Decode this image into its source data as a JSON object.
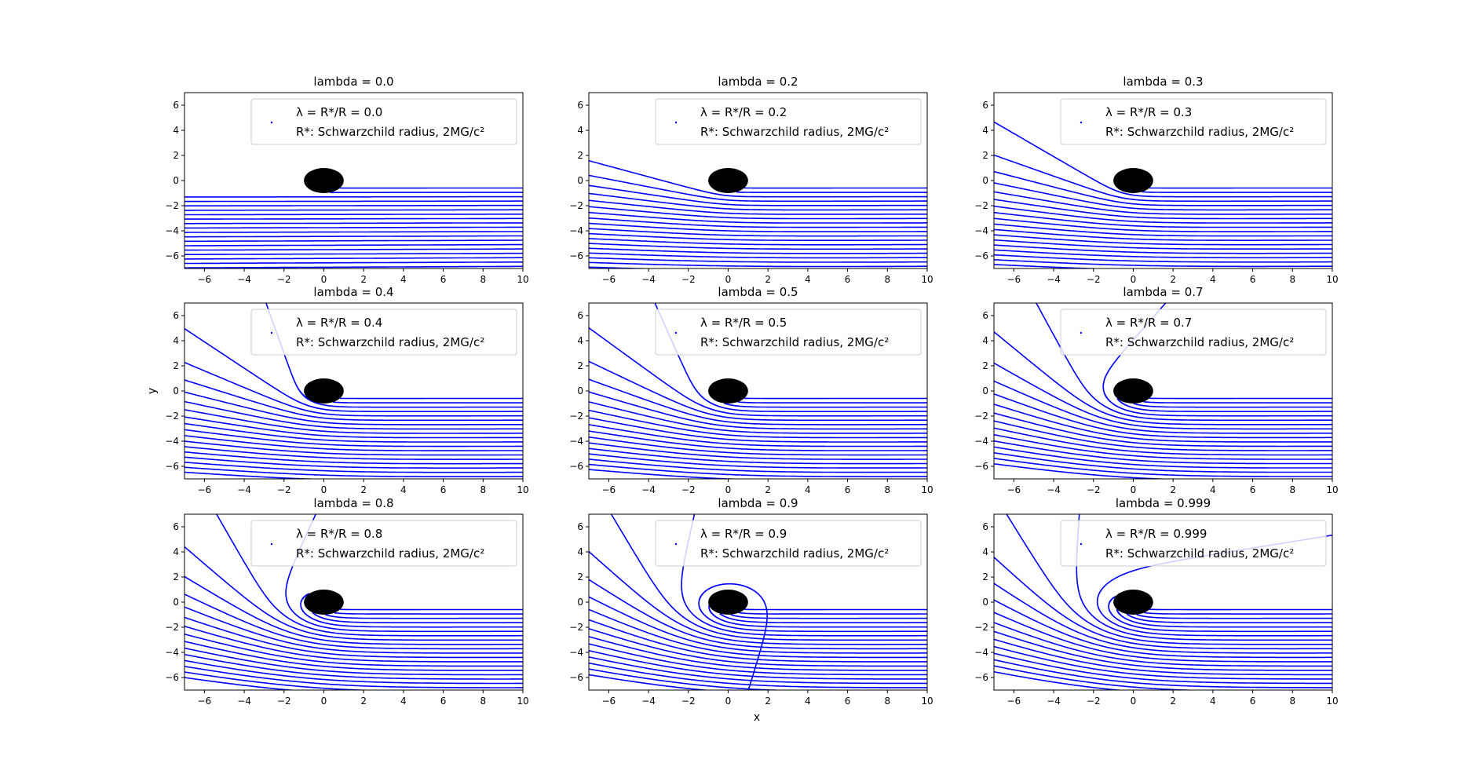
{
  "figure": {
    "xlabel": "x",
    "ylabel": "y"
  },
  "chart_data": [
    {
      "type": "line",
      "title": "lambda = 0.0",
      "lambda": 0.0,
      "legend": {
        "line1": "λ = R*/R = 0.0",
        "line2": "R*: Schwarzchild radius, 2MG/c²",
        "placement": "upper right"
      },
      "xlim": [
        -7,
        10
      ],
      "ylim": [
        -7,
        7
      ],
      "xticks": [
        -6,
        -4,
        -2,
        0,
        2,
        4,
        6,
        8,
        10
      ],
      "yticks": [
        -6,
        -4,
        -2,
        0,
        2,
        4,
        6
      ],
      "line_color": "#0000ff",
      "black_hole": {
        "center": [
          0,
          0
        ],
        "radius": 1
      }
    },
    {
      "type": "line",
      "title": "lambda = 0.2",
      "lambda": 0.2,
      "legend": {
        "line1": "λ = R*/R = 0.2",
        "line2": "R*: Schwarzchild radius, 2MG/c²",
        "placement": "upper right"
      },
      "xlim": [
        -7,
        10
      ],
      "ylim": [
        -7,
        7
      ],
      "xticks": [
        -6,
        -4,
        -2,
        0,
        2,
        4,
        6,
        8,
        10
      ],
      "yticks": [
        -6,
        -4,
        -2,
        0,
        2,
        4,
        6
      ],
      "line_color": "#0000ff",
      "black_hole": {
        "center": [
          0,
          0
        ],
        "radius": 1
      }
    },
    {
      "type": "line",
      "title": "lambda = 0.3",
      "lambda": 0.3,
      "legend": {
        "line1": "λ = R*/R = 0.3",
        "line2": "R*: Schwarzchild radius, 2MG/c²",
        "placement": "upper right"
      },
      "xlim": [
        -7,
        10
      ],
      "ylim": [
        -7,
        7
      ],
      "xticks": [
        -6,
        -4,
        -2,
        0,
        2,
        4,
        6,
        8,
        10
      ],
      "yticks": [
        -6,
        -4,
        -2,
        0,
        2,
        4,
        6
      ],
      "line_color": "#0000ff",
      "black_hole": {
        "center": [
          0,
          0
        ],
        "radius": 1
      }
    },
    {
      "type": "line",
      "title": "lambda = 0.4",
      "lambda": 0.4,
      "legend": {
        "line1": "λ = R*/R = 0.4",
        "line2": "R*: Schwarzchild radius, 2MG/c²",
        "placement": "upper right"
      },
      "xlim": [
        -7,
        10
      ],
      "ylim": [
        -7,
        7
      ],
      "xticks": [
        -6,
        -4,
        -2,
        0,
        2,
        4,
        6,
        8,
        10
      ],
      "yticks": [
        -6,
        -4,
        -2,
        0,
        2,
        4,
        6
      ],
      "line_color": "#0000ff",
      "black_hole": {
        "center": [
          0,
          0
        ],
        "radius": 1
      }
    },
    {
      "type": "line",
      "title": "lambda = 0.5",
      "lambda": 0.5,
      "legend": {
        "line1": "λ = R*/R = 0.5",
        "line2": "R*: Schwarzchild radius, 2MG/c²",
        "placement": "upper right"
      },
      "xlim": [
        -7,
        10
      ],
      "ylim": [
        -7,
        7
      ],
      "xticks": [
        -6,
        -4,
        -2,
        0,
        2,
        4,
        6,
        8,
        10
      ],
      "yticks": [
        -6,
        -4,
        -2,
        0,
        2,
        4,
        6
      ],
      "line_color": "#0000ff",
      "black_hole": {
        "center": [
          0,
          0
        ],
        "radius": 1
      }
    },
    {
      "type": "line",
      "title": "lambda = 0.7",
      "lambda": 0.7,
      "legend": {
        "line1": "λ = R*/R = 0.7",
        "line2": "R*: Schwarzchild radius, 2MG/c²",
        "placement": "upper right"
      },
      "xlim": [
        -7,
        10
      ],
      "ylim": [
        -7,
        7
      ],
      "xticks": [
        -6,
        -4,
        -2,
        0,
        2,
        4,
        6,
        8,
        10
      ],
      "yticks": [
        -6,
        -4,
        -2,
        0,
        2,
        4,
        6
      ],
      "line_color": "#0000ff",
      "black_hole": {
        "center": [
          0,
          0
        ],
        "radius": 1
      }
    },
    {
      "type": "line",
      "title": "lambda = 0.8",
      "lambda": 0.8,
      "legend": {
        "line1": "λ = R*/R = 0.8",
        "line2": "R*: Schwarzchild radius, 2MG/c²",
        "placement": "upper right"
      },
      "xlim": [
        -7,
        10
      ],
      "ylim": [
        -7,
        7
      ],
      "xticks": [
        -6,
        -4,
        -2,
        0,
        2,
        4,
        6,
        8,
        10
      ],
      "yticks": [
        -6,
        -4,
        -2,
        0,
        2,
        4,
        6
      ],
      "line_color": "#0000ff",
      "black_hole": {
        "center": [
          0,
          0
        ],
        "radius": 1
      }
    },
    {
      "type": "line",
      "title": "lambda = 0.9",
      "lambda": 0.9,
      "legend": {
        "line1": "λ = R*/R = 0.9",
        "line2": "R*: Schwarzchild radius, 2MG/c²",
        "placement": "upper right"
      },
      "xlim": [
        -7,
        10
      ],
      "ylim": [
        -7,
        7
      ],
      "xticks": [
        -6,
        -4,
        -2,
        0,
        2,
        4,
        6,
        8,
        10
      ],
      "yticks": [
        -6,
        -4,
        -2,
        0,
        2,
        4,
        6
      ],
      "line_color": "#0000ff",
      "black_hole": {
        "center": [
          0,
          0
        ],
        "radius": 1
      }
    },
    {
      "type": "line",
      "title": "lambda = 0.999",
      "lambda": 0.999,
      "legend": {
        "line1": "λ = R*/R = 0.999",
        "line2": "R*: Schwarzchild radius, 2MG/c²",
        "placement": "upper right"
      },
      "xlim": [
        -7,
        10
      ],
      "ylim": [
        -7,
        7
      ],
      "xticks": [
        -6,
        -4,
        -2,
        0,
        2,
        4,
        6,
        8,
        10
      ],
      "yticks": [
        -6,
        -4,
        -2,
        0,
        2,
        4,
        6
      ],
      "line_color": "#0000ff",
      "black_hole": {
        "center": [
          0,
          0
        ],
        "radius": 1
      }
    }
  ]
}
